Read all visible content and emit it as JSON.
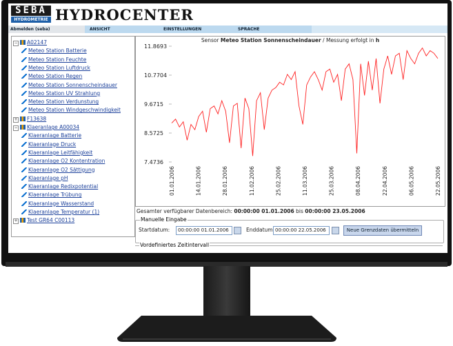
{
  "header": {
    "logo": {
      "mark": "SEBA",
      "sub": "HYDROMETRIE"
    },
    "title": "HYDROCENTER"
  },
  "menu": [
    "Abmelden (seba)",
    "ANSICHT",
    "EINSTELLUNGEN",
    "SPRACHE"
  ],
  "tree": [
    {
      "label": "A02147",
      "children": [
        "Meteo Station Batterie",
        "Meteo Station Feuchte",
        "Meteo Station Luftdruck",
        "Meteo Station Regen",
        "Meteo Station Sonnenscheindauer",
        "Meteo Station UV Strahlung",
        "Meteo Station Verdunstung",
        "Meteo Station Windgeschwindigkeit"
      ]
    },
    {
      "label": "F13638"
    },
    {
      "label": "Klaeranlage A00034",
      "children": [
        "Klaeranlage Batterie",
        "Klaeranlage Druck",
        "Klaeranlage Leitfähigkeit",
        "Klaeranlage O2 Kontentration",
        "Klaeranlage O2 Sättigung",
        "Klaeranlage pH",
        "Klaeranlage Redixpotential",
        "Klaeranlage Trübung",
        "Klaeranlage Wasserstand",
        "Klaeranlage Temperatur (1)"
      ]
    },
    {
      "label": "Test GR64 C00113"
    }
  ],
  "chart_data": {
    "type": "line",
    "title_parts": [
      "Sensor ",
      "Meteo Station Sonnenscheindauer",
      " / Messung erfolgt in ",
      "h"
    ],
    "ylim": [
      7.4736,
      11.8693
    ],
    "yticks": [
      11.8693,
      10.7704,
      9.6715,
      8.5725,
      7.4736
    ],
    "xtick_labels": [
      "01.01.2006",
      "14.01.2006",
      "28.01.2006",
      "11.02.2006",
      "25.02.2006",
      "11.03.2006",
      "25.03.2006",
      "08.04.2006",
      "22.04.2006",
      "06.05.2006",
      "22.05.2006"
    ],
    "color": "#ff2020",
    "values": [
      8.95,
      9.1,
      8.8,
      9.0,
      8.3,
      8.9,
      8.7,
      9.2,
      9.4,
      8.6,
      9.5,
      9.6,
      9.3,
      9.8,
      9.4,
      8.2,
      9.6,
      9.7,
      8.0,
      9.9,
      9.5,
      7.7,
      9.8,
      10.1,
      8.7,
      9.9,
      10.2,
      10.3,
      10.5,
      10.4,
      10.8,
      10.6,
      10.9,
      9.6,
      8.9,
      10.4,
      10.7,
      10.9,
      10.6,
      10.2,
      10.9,
      11.0,
      10.5,
      10.8,
      9.8,
      11.0,
      11.2,
      10.6,
      7.8,
      11.2,
      10.0,
      11.3,
      10.2,
      11.4,
      9.7,
      11.0,
      11.5,
      10.8,
      11.5,
      11.6,
      10.6,
      11.7,
      11.4,
      11.2,
      11.6,
      11.8,
      11.5,
      11.7,
      11.6,
      11.4
    ]
  },
  "range": {
    "label": "Gesamter verfügbarer Datenbereich:",
    "start": "00:00:00 01.01.2006",
    "between": "bis",
    "end": "00:00:00 23.05.2006"
  },
  "manual": {
    "legend": "Manuelle Eingabe",
    "start_label": "Startdatum:",
    "start_value": "00:00:00 01.01.2006",
    "end_label": "Enddatum:",
    "end_value": "00:00:00 22.05.2006",
    "button": "Neue Grenzdaten übermitteln"
  },
  "predefined": {
    "legend": "Vordefiniertes Zeitintervall"
  }
}
